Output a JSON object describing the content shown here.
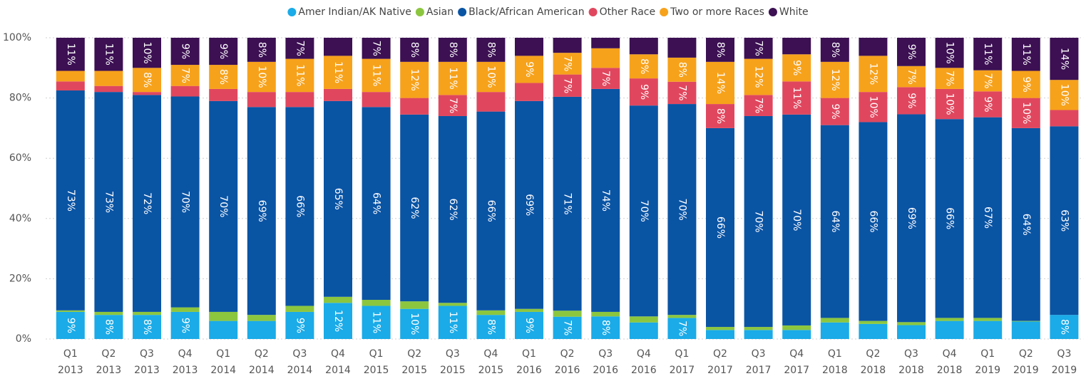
{
  "chart_data": {
    "type": "stacked_bar_100",
    "categories": [
      [
        "Q1",
        "2013"
      ],
      [
        "Q2",
        "2013"
      ],
      [
        "Q3",
        "2013"
      ],
      [
        "Q4",
        "2013"
      ],
      [
        "Q1",
        "2014"
      ],
      [
        "Q2",
        "2014"
      ],
      [
        "Q3",
        "2014"
      ],
      [
        "Q4",
        "2014"
      ],
      [
        "Q1",
        "2015"
      ],
      [
        "Q2",
        "2015"
      ],
      [
        "Q3",
        "2015"
      ],
      [
        "Q4",
        "2015"
      ],
      [
        "Q1",
        "2016"
      ],
      [
        "Q2",
        "2016"
      ],
      [
        "Q3",
        "2016"
      ],
      [
        "Q4",
        "2016"
      ],
      [
        "Q1",
        "2017"
      ],
      [
        "Q2",
        "2017"
      ],
      [
        "Q3",
        "2017"
      ],
      [
        "Q4",
        "2017"
      ],
      [
        "Q1",
        "2018"
      ],
      [
        "Q2",
        "2018"
      ],
      [
        "Q3",
        "2018"
      ],
      [
        "Q4",
        "2018"
      ],
      [
        "Q1",
        "2019"
      ],
      [
        "Q2",
        "2019"
      ],
      [
        "Q3",
        "2019"
      ]
    ],
    "series": [
      {
        "name": "Amer Indian/AK Native",
        "color": "#1aabe8",
        "values": [
          9,
          8,
          8,
          9,
          6,
          6,
          9,
          12,
          11,
          10,
          11,
          8,
          9,
          7.4,
          7.5,
          5.5,
          7,
          3,
          3,
          3,
          5.5,
          5,
          4.6,
          6,
          6,
          5.8,
          8
        ],
        "value_labels": [
          "9%",
          "8%",
          "8%",
          "9%",
          null,
          null,
          "9%",
          "12%",
          "11%",
          "10%",
          "11%",
          "8%",
          "9%",
          "7%",
          "8%",
          null,
          "7%",
          null,
          null,
          null,
          null,
          null,
          null,
          null,
          null,
          null,
          "8%"
        ]
      },
      {
        "name": "Asian",
        "color": "#8cc63f",
        "values": [
          0.5,
          1,
          1,
          1.5,
          3,
          2,
          2,
          2,
          2,
          2.5,
          1,
          1.5,
          1,
          2,
          1.5,
          2,
          1,
          1,
          1,
          1.5,
          1.5,
          1,
          1,
          1,
          1,
          0.2,
          0
        ]
      },
      {
        "name": "Black/African American",
        "color": "#0a54a4",
        "values": [
          73,
          73,
          72,
          70,
          70,
          69,
          66,
          65,
          64,
          62,
          62,
          66,
          69,
          71,
          74,
          70,
          70,
          66,
          70,
          70,
          64,
          66,
          69,
          66,
          66.6,
          64,
          62.6
        ],
        "value_labels": [
          "73%",
          "73%",
          "72%",
          "70%",
          "70%",
          "69%",
          "66%",
          "65%",
          "64%",
          "62%",
          "62%",
          "66%",
          "69%",
          "71%",
          "74%",
          "70%",
          "70%",
          "66%",
          "70%",
          "70%",
          "64%",
          "66%",
          "69%",
          "66%",
          "67%",
          "64%",
          "63%"
        ]
      },
      {
        "name": "Other Race",
        "color": "#e0475e",
        "values": [
          3,
          2,
          1,
          3.5,
          4,
          5,
          5,
          4,
          5,
          5.5,
          7,
          6.5,
          6,
          7.4,
          7,
          9,
          7.4,
          8,
          7,
          11,
          9,
          10,
          9,
          10,
          8.6,
          10,
          5.4
        ],
        "value_labels": [
          null,
          null,
          null,
          null,
          null,
          null,
          null,
          null,
          null,
          null,
          "7%",
          null,
          null,
          "7%",
          "7%",
          "9%",
          "7%",
          "8%",
          "7%",
          "11%",
          "9%",
          "10%",
          "9%",
          "10%",
          "9%",
          "10%",
          null
        ]
      },
      {
        "name": "Two or more Races",
        "color": "#f7a21b",
        "values": [
          3.5,
          5,
          8,
          7,
          8,
          10,
          11,
          11,
          11,
          12,
          11,
          10,
          9,
          7.2,
          6.5,
          8,
          8,
          14,
          12,
          9,
          12,
          12,
          7,
          7,
          7,
          9,
          10
        ],
        "value_labels": [
          null,
          null,
          "8%",
          "7%",
          "8%",
          "10%",
          "11%",
          "11%",
          "11%",
          "12%",
          "11%",
          "10%",
          "9%",
          "7%",
          null,
          "8%",
          "8%",
          "14%",
          "12%",
          "9%",
          "12%",
          "12%",
          "7%",
          "7%",
          "7%",
          "9%",
          "10%"
        ]
      },
      {
        "name": "White",
        "color": "#3c1053",
        "values": [
          11,
          11,
          10,
          9,
          9,
          8,
          7,
          6,
          7,
          8,
          8,
          8,
          6,
          5,
          3.5,
          5.5,
          6.6,
          8,
          7,
          5.5,
          8,
          6,
          9.4,
          10,
          10.8,
          11,
          14
        ],
        "value_labels": [
          "11%",
          "11%",
          "10%",
          "9%",
          "9%",
          "8%",
          "7%",
          null,
          "7%",
          "8%",
          "8%",
          "8%",
          null,
          null,
          null,
          null,
          null,
          "8%",
          "7%",
          null,
          "8%",
          null,
          "9%",
          "10%",
          "11%",
          "11%",
          "14%"
        ]
      }
    ],
    "ylim": [
      0,
      100
    ],
    "yticks": [
      {
        "value": 0,
        "label": "0%"
      },
      {
        "value": 20,
        "label": "20%"
      },
      {
        "value": 40,
        "label": "40%"
      },
      {
        "value": 60,
        "label": "60%"
      },
      {
        "value": 80,
        "label": "80%"
      },
      {
        "value": 100,
        "label": "100%"
      }
    ],
    "grid": true,
    "legend": "top"
  }
}
